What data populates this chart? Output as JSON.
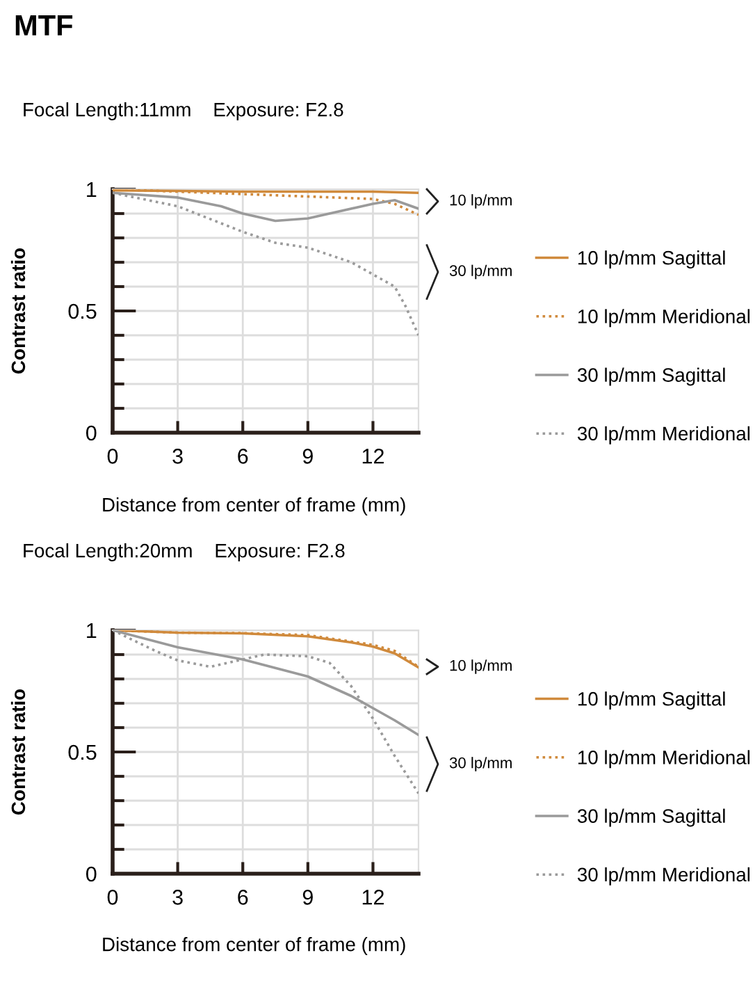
{
  "chart_data": [
    {
      "type": "line",
      "title": "MTF",
      "subtitle": "Focal Length:11mm    Exposure: F2.8",
      "xlabel": "Distance from center of frame (mm)",
      "ylabel": "Contrast ratio",
      "xlim": [
        0,
        14.1
      ],
      "xticks": [
        0,
        3,
        6,
        9,
        12
      ],
      "ylim": [
        0,
        1
      ],
      "yticks": [
        0,
        {
          "value": 0.1,
          "label": null
        },
        {
          "value": 0.2,
          "label": null
        },
        {
          "value": 0.3,
          "label": null
        },
        {
          "value": 0.4,
          "label": null
        },
        0.5,
        {
          "value": 0.6,
          "label": null
        },
        {
          "value": 0.7,
          "label": null
        },
        {
          "value": 0.8,
          "label": null
        },
        {
          "value": 0.9,
          "label": null
        },
        1
      ],
      "grid": true,
      "legend": "right",
      "annotations": [
        "10 lp/mm",
        "30 lp/mm"
      ],
      "series": [
        {
          "name": "10 lp/mm Sagittal",
          "color": "#d08a3c",
          "line_style": "solid",
          "x": [
            0,
            3,
            6,
            9,
            12,
            14.1
          ],
          "values": [
            0.995,
            0.993,
            0.99,
            0.99,
            0.99,
            0.985
          ]
        },
        {
          "name": "10 lp/mm Meridional",
          "color": "#d08a3c",
          "line_style": "dotted",
          "x": [
            0,
            3,
            6,
            9,
            12,
            13,
            14.1
          ],
          "values": [
            1.0,
            0.99,
            0.98,
            0.97,
            0.96,
            0.94,
            0.895
          ]
        },
        {
          "name": "30 lp/mm Sagittal",
          "color": "#9a9a9a",
          "line_style": "solid",
          "x": [
            0,
            3,
            5,
            6,
            7.5,
            9,
            12,
            13,
            14.1
          ],
          "values": [
            0.985,
            0.966,
            0.93,
            0.9,
            0.87,
            0.88,
            0.94,
            0.955,
            0.92
          ]
        },
        {
          "name": "30 lp/mm Meridional",
          "color": "#9a9a9a",
          "line_style": "dotted",
          "x": [
            0,
            3,
            6,
            7.5,
            9,
            11,
            12,
            13,
            13.5,
            14.1
          ],
          "values": [
            0.985,
            0.93,
            0.825,
            0.78,
            0.76,
            0.7,
            0.65,
            0.6,
            0.52,
            0.4
          ]
        }
      ]
    },
    {
      "type": "line",
      "subtitle": "Focal Length:20mm    Exposure: F2.8",
      "xlabel": "Distance from center of frame (mm)",
      "ylabel": "Contrast ratio",
      "xlim": [
        0,
        14.1
      ],
      "xticks": [
        0,
        3,
        6,
        9,
        12
      ],
      "ylim": [
        0,
        1
      ],
      "yticks": [
        0,
        {
          "value": 0.1,
          "label": null
        },
        {
          "value": 0.2,
          "label": null
        },
        {
          "value": 0.3,
          "label": null
        },
        {
          "value": 0.4,
          "label": null
        },
        0.5,
        {
          "value": 0.6,
          "label": null
        },
        {
          "value": 0.7,
          "label": null
        },
        {
          "value": 0.8,
          "label": null
        },
        {
          "value": 0.9,
          "label": null
        },
        1
      ],
      "grid": true,
      "legend": "right",
      "annotations": [
        "10 lp/mm",
        "30 lp/mm"
      ],
      "series": [
        {
          "name": "10 lp/mm Sagittal",
          "color": "#d08a3c",
          "line_style": "solid",
          "x": [
            0,
            3,
            6,
            9,
            11,
            12,
            13,
            14.1
          ],
          "values": [
            1.0,
            0.99,
            0.987,
            0.975,
            0.95,
            0.933,
            0.905,
            0.847
          ]
        },
        {
          "name": "10 lp/mm Meridional",
          "color": "#d08a3c",
          "line_style": "dotted",
          "x": [
            0,
            3,
            6,
            9,
            12,
            13,
            14.1
          ],
          "values": [
            1.0,
            0.99,
            0.988,
            0.98,
            0.94,
            0.915,
            0.85
          ]
        },
        {
          "name": "30 lp/mm Sagittal",
          "color": "#9a9a9a",
          "line_style": "solid",
          "x": [
            0,
            3,
            6,
            9,
            11,
            12,
            13,
            14.1
          ],
          "values": [
            1.0,
            0.93,
            0.88,
            0.81,
            0.73,
            0.68,
            0.63,
            0.57
          ]
        },
        {
          "name": "30 lp/mm Meridional",
          "color": "#9a9a9a",
          "line_style": "dotted",
          "x": [
            0,
            2,
            3,
            4.5,
            6,
            7,
            9,
            10,
            11,
            12,
            13,
            14.1
          ],
          "values": [
            1.0,
            0.914,
            0.876,
            0.85,
            0.88,
            0.9,
            0.893,
            0.866,
            0.77,
            0.637,
            0.484,
            0.33
          ]
        }
      ]
    }
  ]
}
